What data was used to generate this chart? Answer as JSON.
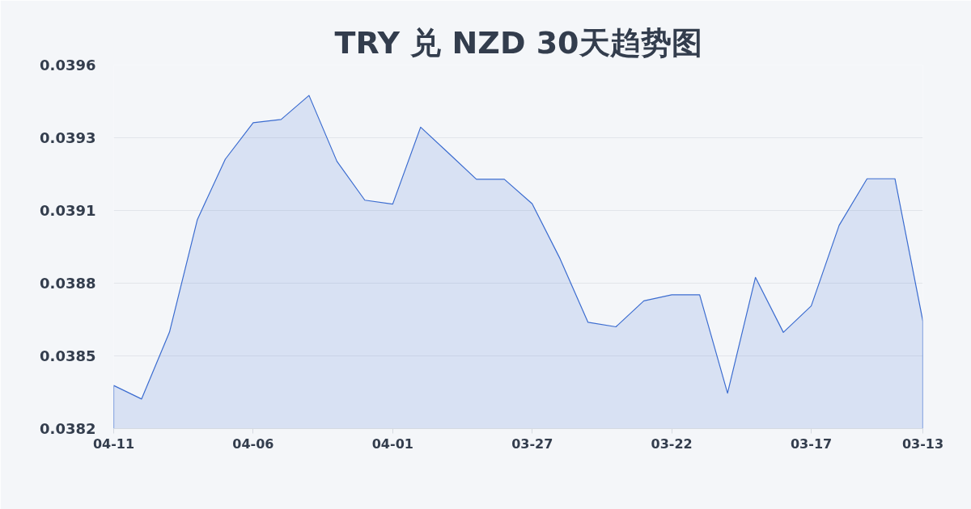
{
  "chart_data": {
    "type": "area",
    "title": "TRY 兑 NZD 30天趋势图",
    "categories": [
      "04-11",
      null,
      null,
      null,
      null,
      "04-06",
      null,
      null,
      null,
      null,
      "04-01",
      null,
      null,
      null,
      null,
      "03-27",
      null,
      null,
      null,
      null,
      "03-22",
      null,
      null,
      null,
      null,
      "03-17",
      null,
      null,
      null,
      "03-13"
    ],
    "series": [
      {
        "color": "#3b6cd0",
        "values": [
          0.038393,
          0.038342,
          0.038595,
          0.039021,
          0.039249,
          0.039387,
          0.039399,
          0.03949,
          0.039241,
          0.039094,
          0.039079,
          0.03937,
          0.039272,
          0.039173,
          0.039173,
          0.03908,
          0.038872,
          0.038632,
          0.038615,
          0.038713,
          0.038736,
          0.038736,
          0.038364,
          0.038802,
          0.038594,
          0.038694,
          0.038999,
          0.039175,
          0.039175,
          0.038637
        ]
      }
    ],
    "ylim": [
      0.03823,
      0.039605
    ],
    "yticks": [
      {
        "value": 0.03823,
        "label": "0.0382"
      },
      {
        "value": 0.038505,
        "label": "0.0385"
      },
      {
        "value": 0.03878,
        "label": "0.0388"
      },
      {
        "value": 0.039055,
        "label": "0.0391"
      },
      {
        "value": 0.03933,
        "label": "0.0393"
      },
      {
        "value": 0.039605,
        "label": "0.0396"
      }
    ],
    "grid": "y"
  }
}
